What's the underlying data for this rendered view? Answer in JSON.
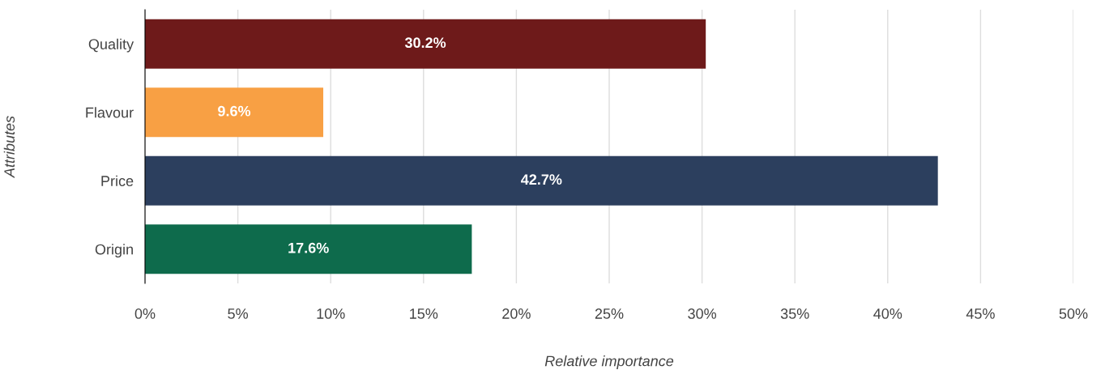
{
  "chart_data": {
    "type": "bar",
    "orientation": "horizontal",
    "xlabel": "Relative importance",
    "ylabel": "Attributes",
    "categories": [
      "Quality",
      "Flavour",
      "Price",
      "Origin"
    ],
    "values": [
      30.2,
      9.6,
      42.7,
      17.6
    ],
    "colors": [
      "#6e1a1a",
      "#f8a044",
      "#2c3f5e",
      "#0e6b4c"
    ],
    "value_labels": [
      "30.2%",
      "9.6%",
      "42.7%",
      "17.6%"
    ],
    "xlim": [
      0,
      50
    ],
    "xticks": [
      {
        "value": 0,
        "label": "0%"
      },
      {
        "value": 5,
        "label": "5%"
      },
      {
        "value": 10,
        "label": "10%"
      },
      {
        "value": 15,
        "label": "15%"
      },
      {
        "value": 20,
        "label": "20%"
      },
      {
        "value": 25,
        "label": "25%"
      },
      {
        "value": 30,
        "label": "30%"
      },
      {
        "value": 35,
        "label": "35%"
      },
      {
        "value": 40,
        "label": "40%"
      },
      {
        "value": 45,
        "label": "45%"
      },
      {
        "value": 50,
        "label": "50%"
      }
    ],
    "grid": "x"
  }
}
